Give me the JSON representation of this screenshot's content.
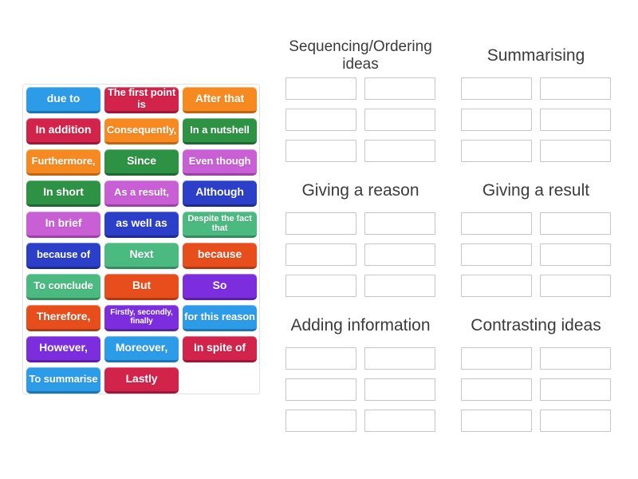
{
  "ui": {
    "background": "#ffffff",
    "panel_border_color": "#e2e2e2",
    "slot_border_color": "#c6c6c6",
    "header_text_color": "#3b3b3b",
    "tile_text_color": "#ffffff"
  },
  "palette": {
    "blue": {
      "bg": "#2D9CE8",
      "edge": "#1B76B4"
    },
    "crimson": {
      "bg": "#D2234B",
      "edge": "#9E1638"
    },
    "orange": {
      "bg": "#F68A21",
      "edge": "#C06511"
    },
    "green": {
      "bg": "#2E9245",
      "edge": "#206831"
    },
    "orchid": {
      "bg": "#C95FD5",
      "edge": "#9C41A8"
    },
    "royalblue": {
      "bg": "#2B3FC9",
      "edge": "#1E2B8F"
    },
    "seagreen": {
      "bg": "#4BBA80",
      "edge": "#358A5E"
    },
    "orangered": {
      "bg": "#E84E1C",
      "edge": "#B03A13"
    },
    "violet": {
      "bg": "#7C2EDF",
      "edge": "#5A20A6"
    }
  },
  "word_bank": {
    "tiles": [
      {
        "label": "due to",
        "color": "blue",
        "size": "md"
      },
      {
        "label": "The first point is",
        "color": "crimson",
        "size": "sm"
      },
      {
        "label": "After that",
        "color": "orange",
        "size": "md"
      },
      {
        "label": "In addition",
        "color": "crimson",
        "size": "md"
      },
      {
        "label": "Consequently,",
        "color": "orange",
        "size": "sm"
      },
      {
        "label": "In a nutshell",
        "color": "green",
        "size": "sm"
      },
      {
        "label": "Furthermore,",
        "color": "orange",
        "size": "sm"
      },
      {
        "label": "Since",
        "color": "green",
        "size": "md"
      },
      {
        "label": "Even though",
        "color": "orchid",
        "size": "sm"
      },
      {
        "label": "In short",
        "color": "green",
        "size": "md"
      },
      {
        "label": "As a result,",
        "color": "orchid",
        "size": "sm"
      },
      {
        "label": "Although",
        "color": "royalblue",
        "size": "md"
      },
      {
        "label": "In brief",
        "color": "orchid",
        "size": "md"
      },
      {
        "label": "as well as",
        "color": "royalblue",
        "size": "md"
      },
      {
        "label": "Despite the fact that",
        "color": "seagreen",
        "size": "xs"
      },
      {
        "label": "because of",
        "color": "royalblue",
        "size": "sm"
      },
      {
        "label": "Next",
        "color": "seagreen",
        "size": "md"
      },
      {
        "label": "because",
        "color": "orangered",
        "size": "md"
      },
      {
        "label": "To conclude",
        "color": "seagreen",
        "size": "sm"
      },
      {
        "label": "But",
        "color": "orangered",
        "size": "md"
      },
      {
        "label": "So",
        "color": "violet",
        "size": "md"
      },
      {
        "label": "Therefore,",
        "color": "orangered",
        "size": "md"
      },
      {
        "label": "Firstly, secondly, finally",
        "color": "violet",
        "size": "xxs"
      },
      {
        "label": "for this reason",
        "color": "blue",
        "size": "sm"
      },
      {
        "label": "However,",
        "color": "violet",
        "size": "md"
      },
      {
        "label": "Moreover,",
        "color": "blue",
        "size": "md"
      },
      {
        "label": "In spite of",
        "color": "crimson",
        "size": "md"
      },
      {
        "label": "To summarise",
        "color": "blue",
        "size": "sm"
      },
      {
        "label": "Lastly",
        "color": "crimson",
        "size": "md"
      }
    ]
  },
  "groups": [
    {
      "title": "Sequencing/Ordering ideas",
      "slots": 6
    },
    {
      "title": "Summarising",
      "slots": 6
    },
    {
      "title": "Giving a reason",
      "slots": 6
    },
    {
      "title": "Giving a result",
      "slots": 6
    },
    {
      "title": "Adding information",
      "slots": 6
    },
    {
      "title": "Contrasting ideas",
      "slots": 6
    }
  ]
}
